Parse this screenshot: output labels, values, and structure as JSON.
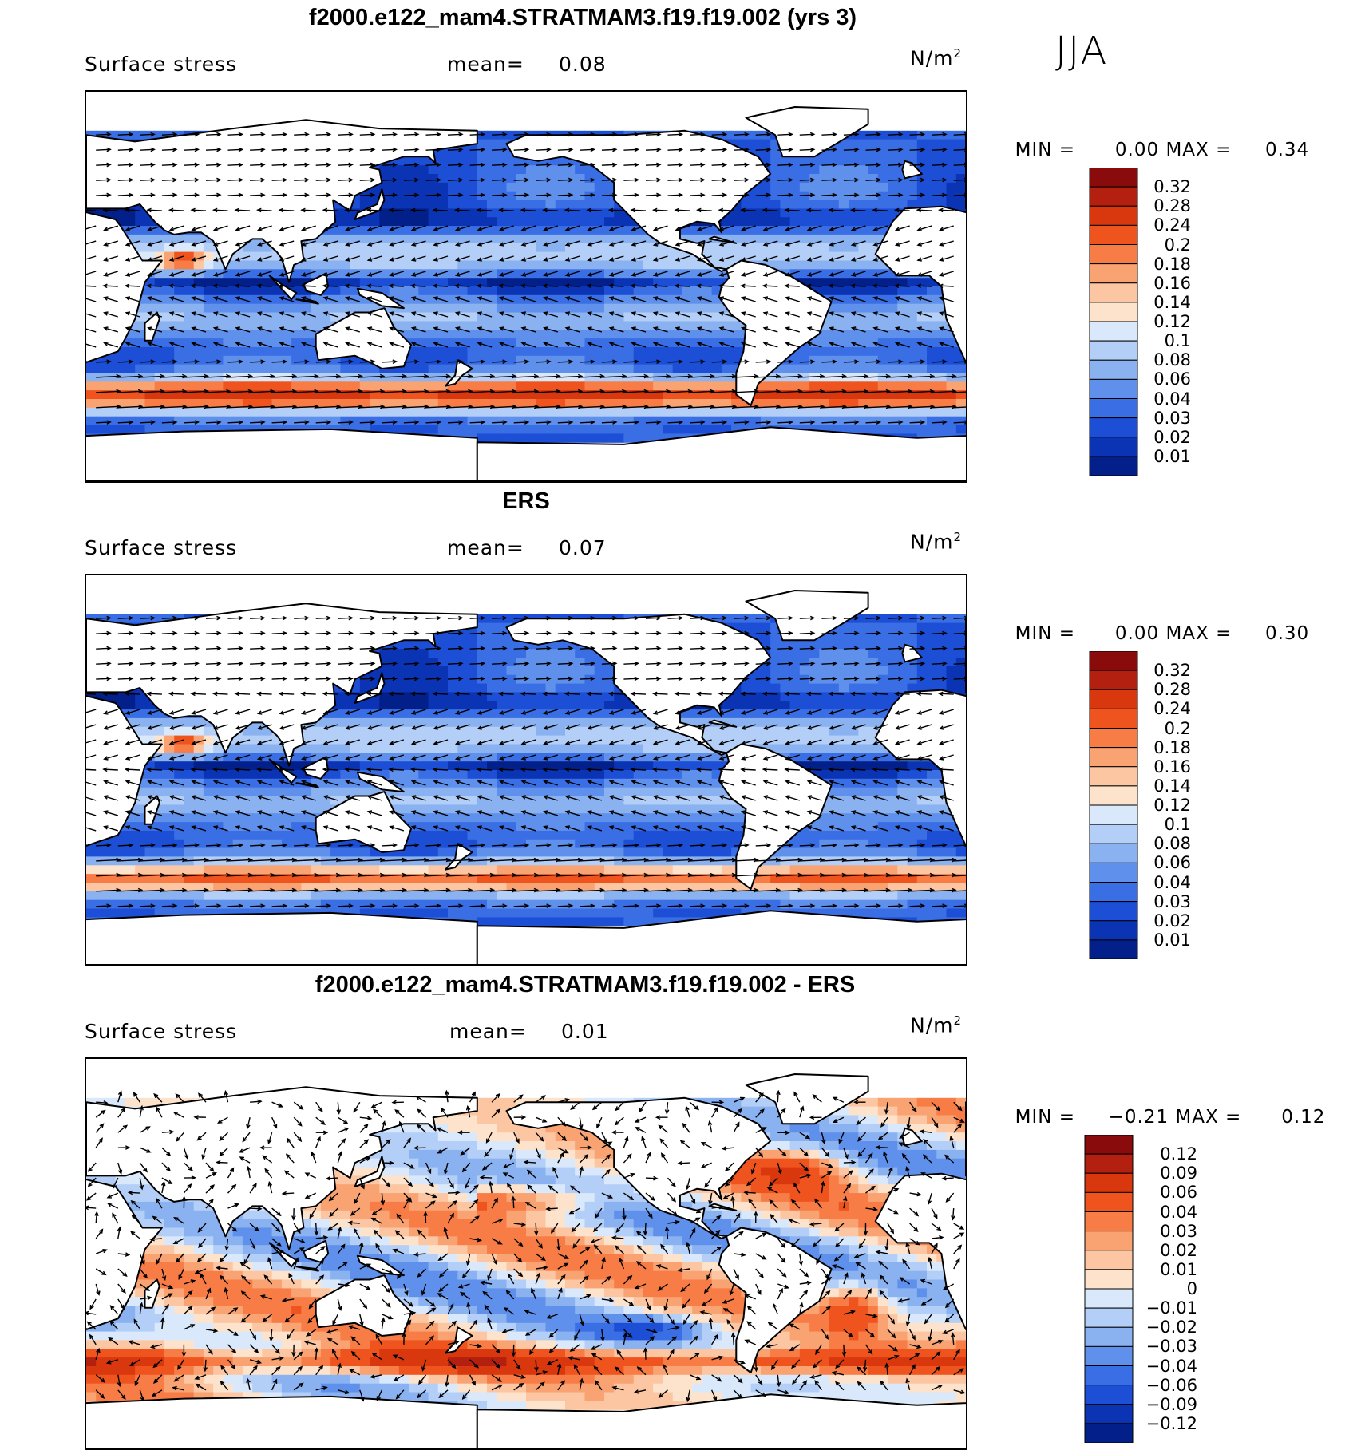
{
  "season": "JJA",
  "land_color": "#ffffff",
  "panels": [
    {
      "title": "f2000.e122_mam4.STRATMAM3.f19.f19.002 (yrs 3)",
      "variable": "Surface stress",
      "mean_label": "mean=",
      "mean_value": "0.08",
      "units_base": "N/m",
      "units_exp": "2",
      "min_label": "MIN =",
      "min_value": "0.00",
      "max_label": "MAX =",
      "max_value": "0.34",
      "field": "model",
      "colorbar": {
        "labels": [
          "0.32",
          "0.28",
          "0.24",
          "0.2",
          "0.18",
          "0.16",
          "0.14",
          "0.12",
          "0.1",
          "0.08",
          "0.06",
          "0.04",
          "0.03",
          "0.02",
          "0.01"
        ],
        "colors": [
          "#8a0b0b",
          "#b3200f",
          "#d9380f",
          "#f0541e",
          "#f77c46",
          "#f9a272",
          "#fcc6a2",
          "#fde3cc",
          "#d9e9fb",
          "#b4cff7",
          "#8ab2f1",
          "#5f90eb",
          "#3a6ee4",
          "#1c4fd6",
          "#0b34b5",
          "#03208a"
        ]
      }
    },
    {
      "title": "ERS",
      "variable": "Surface stress",
      "mean_label": "mean=",
      "mean_value": "0.07",
      "units_base": "N/m",
      "units_exp": "2",
      "min_label": "MIN =",
      "min_value": "0.00",
      "max_label": "MAX =",
      "max_value": "0.30",
      "field": "obs",
      "colorbar": {
        "labels": [
          "0.32",
          "0.28",
          "0.24",
          "0.2",
          "0.18",
          "0.16",
          "0.14",
          "0.12",
          "0.1",
          "0.08",
          "0.06",
          "0.04",
          "0.03",
          "0.02",
          "0.01"
        ],
        "colors": [
          "#8a0b0b",
          "#b3200f",
          "#d9380f",
          "#f0541e",
          "#f77c46",
          "#f9a272",
          "#fcc6a2",
          "#fde3cc",
          "#d9e9fb",
          "#b4cff7",
          "#8ab2f1",
          "#5f90eb",
          "#3a6ee4",
          "#1c4fd6",
          "#0b34b5",
          "#03208a"
        ]
      }
    },
    {
      "title": "f2000.e122_mam4.STRATMAM3.f19.f19.002 - ERS",
      "variable": "Surface stress",
      "mean_label": "mean=",
      "mean_value": "0.01",
      "units_base": "N/m",
      "units_exp": "2",
      "min_label": "MIN =",
      "min_value": "−0.21",
      "max_label": "MAX =",
      "max_value": "0.12",
      "field": "diff",
      "colorbar": {
        "labels": [
          "0.12",
          "0.09",
          "0.06",
          "0.04",
          "0.03",
          "0.02",
          "0.01",
          "0",
          "−0.01",
          "−0.02",
          "−0.03",
          "−0.04",
          "−0.06",
          "−0.09",
          "−0.12"
        ],
        "colors": [
          "#8a0b0b",
          "#b3200f",
          "#d9380f",
          "#f0541e",
          "#f77c46",
          "#f9a272",
          "#fcc6a2",
          "#fde3cc",
          "#d9e9fb",
          "#b4cff7",
          "#8ab2f1",
          "#5f90eb",
          "#3a6ee4",
          "#1c4fd6",
          "#0b34b5",
          "#03208a"
        ]
      }
    }
  ]
}
